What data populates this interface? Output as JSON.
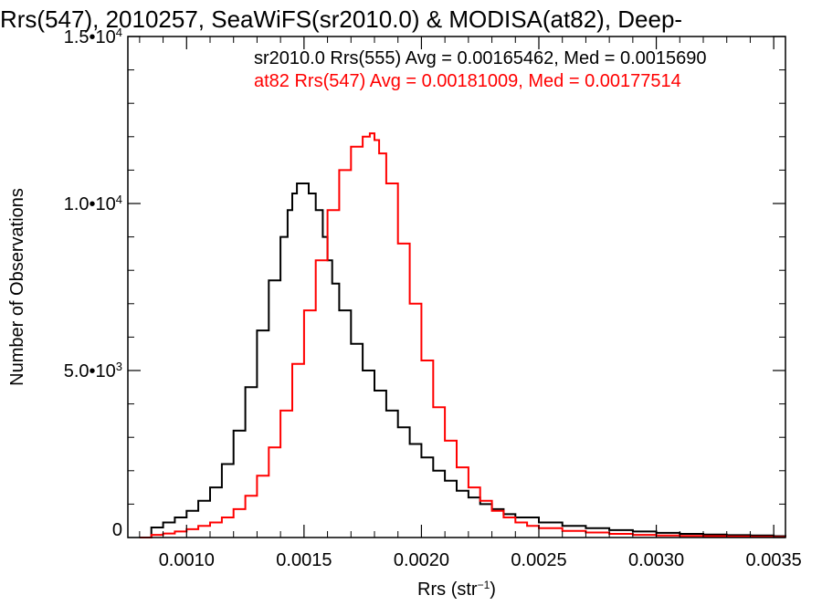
{
  "chart_data": {
    "type": "line",
    "title": "Rrs(547), 2010257, SeaWiFS(sr2010.0) & MODISA(at82), Deep-",
    "xlabel": "Rrs (str",
    "xlabel_sup": "−1",
    "xlabel_end": ")",
    "ylabel": "Number of Observations",
    "xlim": [
      0.00075,
      0.00355
    ],
    "ylim": [
      0,
      15000
    ],
    "x_ticks": [
      0.001,
      0.0015,
      0.002,
      0.0025,
      0.003,
      0.0035
    ],
    "x_tick_labels": [
      "0.0010",
      "0.0015",
      "0.0020",
      "0.0025",
      "0.0030",
      "0.0035"
    ],
    "y_ticks": [
      0,
      5000,
      10000,
      15000
    ],
    "y_tick_labels": [
      {
        "base": "0",
        "exp": ""
      },
      {
        "base": "5.0•10",
        "exp": "3"
      },
      {
        "base": "1.0•10",
        "exp": "4"
      },
      {
        "base": "1.5•10",
        "exp": "4"
      }
    ],
    "step_style": "histogram",
    "series": [
      {
        "color": "#000000",
        "annotation": "sr2010.0 Rrs(555) Avg = 0.00165462, Med = 0.0015690",
        "x": [
          0.0008,
          0.00085,
          0.0009,
          0.00095,
          0.001,
          0.00105,
          0.0011,
          0.00115,
          0.0012,
          0.00125,
          0.0013,
          0.00135,
          0.0014,
          0.00143,
          0.00145,
          0.00147,
          0.00149,
          0.00152,
          0.00155,
          0.00158,
          0.0016,
          0.00162,
          0.00165,
          0.0017,
          0.00175,
          0.0018,
          0.00185,
          0.0019,
          0.00195,
          0.002,
          0.00205,
          0.0021,
          0.00215,
          0.0022,
          0.00225,
          0.0023,
          0.00235,
          0.0024,
          0.0025,
          0.0026,
          0.0027,
          0.0028,
          0.0029,
          0.003,
          0.0031,
          0.0032,
          0.0033,
          0.0034,
          0.0035,
          0.00355
        ],
        "y": [
          0,
          300,
          450,
          600,
          800,
          1100,
          1500,
          2200,
          3200,
          4500,
          6200,
          7700,
          9000,
          9800,
          10300,
          10600,
          10600,
          10300,
          9800,
          9000,
          8300,
          7600,
          6800,
          5800,
          5000,
          4400,
          3800,
          3300,
          2800,
          2400,
          2000,
          1700,
          1400,
          1200,
          1000,
          850,
          700,
          600,
          450,
          350,
          280,
          220,
          180,
          140,
          110,
          90,
          70,
          60,
          40,
          30
        ]
      },
      {
        "color": "#ff0000",
        "annotation": "at82 Rrs(547) Avg = 0.00181009, Med = 0.00177514",
        "x": [
          0.0008,
          0.00085,
          0.0009,
          0.00095,
          0.001,
          0.00105,
          0.0011,
          0.00115,
          0.0012,
          0.00125,
          0.0013,
          0.00135,
          0.0014,
          0.00145,
          0.0015,
          0.00155,
          0.0016,
          0.00165,
          0.0017,
          0.00175,
          0.00178,
          0.0018,
          0.00182,
          0.00185,
          0.0019,
          0.00195,
          0.002,
          0.00205,
          0.0021,
          0.00215,
          0.0022,
          0.00225,
          0.0023,
          0.00235,
          0.0024,
          0.00245,
          0.0025,
          0.0026,
          0.0027,
          0.0028,
          0.0029,
          0.003,
          0.0031,
          0.0032,
          0.0033,
          0.0034,
          0.0035,
          0.00355
        ],
        "y": [
          0,
          80,
          120,
          180,
          250,
          350,
          450,
          600,
          850,
          1250,
          1850,
          2700,
          3800,
          5200,
          6800,
          8300,
          9800,
          11000,
          11700,
          12000,
          12100,
          11900,
          11500,
          10600,
          8800,
          7000,
          5300,
          3900,
          2900,
          2100,
          1500,
          1100,
          800,
          600,
          450,
          350,
          280,
          200,
          150,
          110,
          80,
          60,
          50,
          40,
          30,
          20,
          15,
          10
        ]
      }
    ]
  }
}
